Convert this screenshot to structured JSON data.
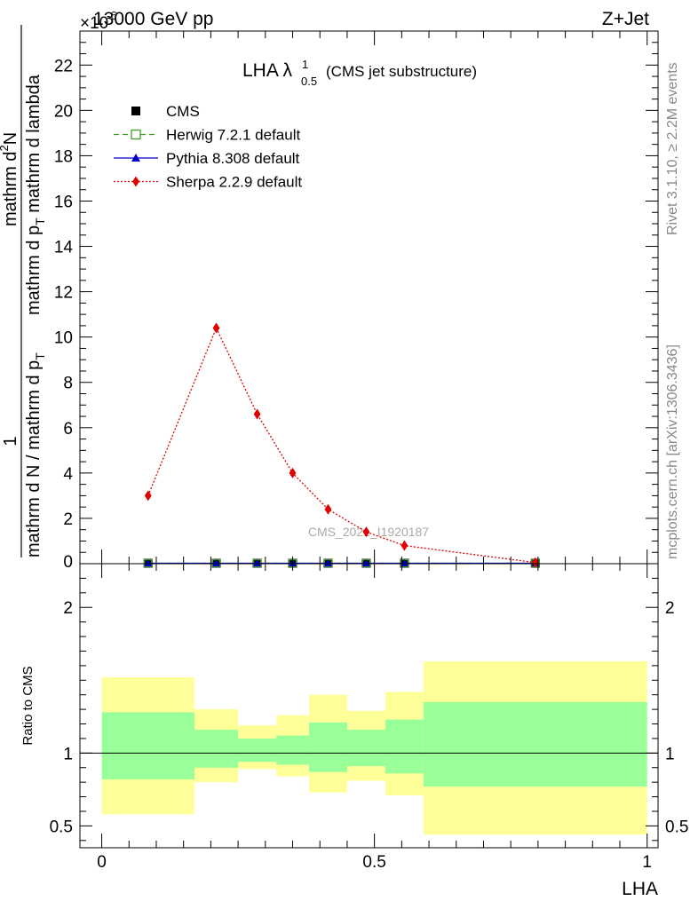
{
  "header": {
    "left": "13000 GeV pp",
    "right": "Z+Jet",
    "exponent": "×10",
    "exponent_power": "-6"
  },
  "title": {
    "main": "LHA λ",
    "sup": "1",
    "sub": "0.5",
    "suffix": "(CMS jet substructure)"
  },
  "ylabel_top": {
    "numerator": "1",
    "denominator": "mathrm d N / mathrm d p",
    "denominator_sub": "T",
    "numerator2": "mathrm d",
    "numerator2_sup": "2",
    "numerator2_rest": "N",
    "denominator2": "mathrm d p",
    "denominator2_sub": "T",
    "denominator2_rest": " mathrm d lambda"
  },
  "ylabel_ratio": "Ratio to CMS",
  "xlabel": "LHA",
  "watermark": "CMS_2021_I1920187",
  "side_text": {
    "rivet": "Rivet 3.1.10, ≥ 2.2M events",
    "mcplots": "mcplots.cern.ch [arXiv:1306.3436]"
  },
  "legend": [
    {
      "label": "CMS",
      "color": "#000000",
      "marker": "square-filled"
    },
    {
      "label": "Herwig 7.2.1 default",
      "color": "#3f9f1f",
      "marker": "square-open",
      "line": "dashed"
    },
    {
      "label": "Pythia 8.308 default",
      "color": "#0000cc",
      "marker": "triangle",
      "line": "solid"
    },
    {
      "label": "Sherpa 2.2.9 default",
      "color": "#e00000",
      "marker": "diamond",
      "line": "dotted"
    }
  ],
  "chart_data": {
    "type": "line",
    "xlim": [
      -0.04,
      1.02
    ],
    "ylim": [
      0,
      23.5
    ],
    "ratio_ylim": [
      0.35,
      2.3
    ],
    "x_ticks": [
      "0",
      "0.5",
      "1"
    ],
    "y_ticks": [
      "2",
      "4",
      "6",
      "8",
      "10",
      "12",
      "14",
      "16",
      "18",
      "20",
      "22"
    ],
    "ratio_ticks": [
      "0.5",
      "1",
      "2"
    ],
    "bins": [
      [
        0.0,
        0.17
      ],
      [
        0.17,
        0.25
      ],
      [
        0.25,
        0.32
      ],
      [
        0.32,
        0.38
      ],
      [
        0.38,
        0.45
      ],
      [
        0.45,
        0.52
      ],
      [
        0.52,
        0.59
      ],
      [
        0.59,
        1.0
      ]
    ],
    "series": [
      {
        "name": "CMS",
        "x": [
          0.085,
          0.21,
          0.285,
          0.35,
          0.415,
          0.485,
          0.555,
          0.795
        ],
        "values": [
          0.02,
          0.02,
          0.02,
          0.02,
          0.02,
          0.02,
          0.02,
          0.02
        ]
      },
      {
        "name": "Herwig 7.2.1 default",
        "x": [
          0.085,
          0.21,
          0.285,
          0.35,
          0.415,
          0.485,
          0.555,
          0.795
        ],
        "values": [
          0.02,
          0.02,
          0.02,
          0.02,
          0.02,
          0.02,
          0.02,
          0.02
        ]
      },
      {
        "name": "Pythia 8.308 default",
        "x": [
          0.085,
          0.21,
          0.285,
          0.35,
          0.415,
          0.485,
          0.555,
          0.795
        ],
        "values": [
          0.02,
          0.02,
          0.02,
          0.02,
          0.02,
          0.02,
          0.02,
          0.02
        ]
      },
      {
        "name": "Sherpa 2.2.9 default",
        "x": [
          0.085,
          0.21,
          0.285,
          0.35,
          0.415,
          0.485,
          0.555,
          0.795
        ],
        "values": [
          3.0,
          10.4,
          6.6,
          4.0,
          2.4,
          1.4,
          0.8,
          0.05
        ]
      }
    ],
    "ratio_bands": {
      "yellow_low": [
        0.58,
        0.8,
        0.89,
        0.84,
        0.73,
        0.81,
        0.71,
        0.44
      ],
      "yellow_high": [
        1.52,
        1.3,
        1.19,
        1.26,
        1.4,
        1.29,
        1.42,
        1.63
      ],
      "green_low": [
        0.82,
        0.9,
        0.94,
        0.92,
        0.87,
        0.91,
        0.86,
        0.77
      ],
      "green_high": [
        1.28,
        1.16,
        1.1,
        1.12,
        1.21,
        1.16,
        1.23,
        1.35
      ]
    }
  }
}
